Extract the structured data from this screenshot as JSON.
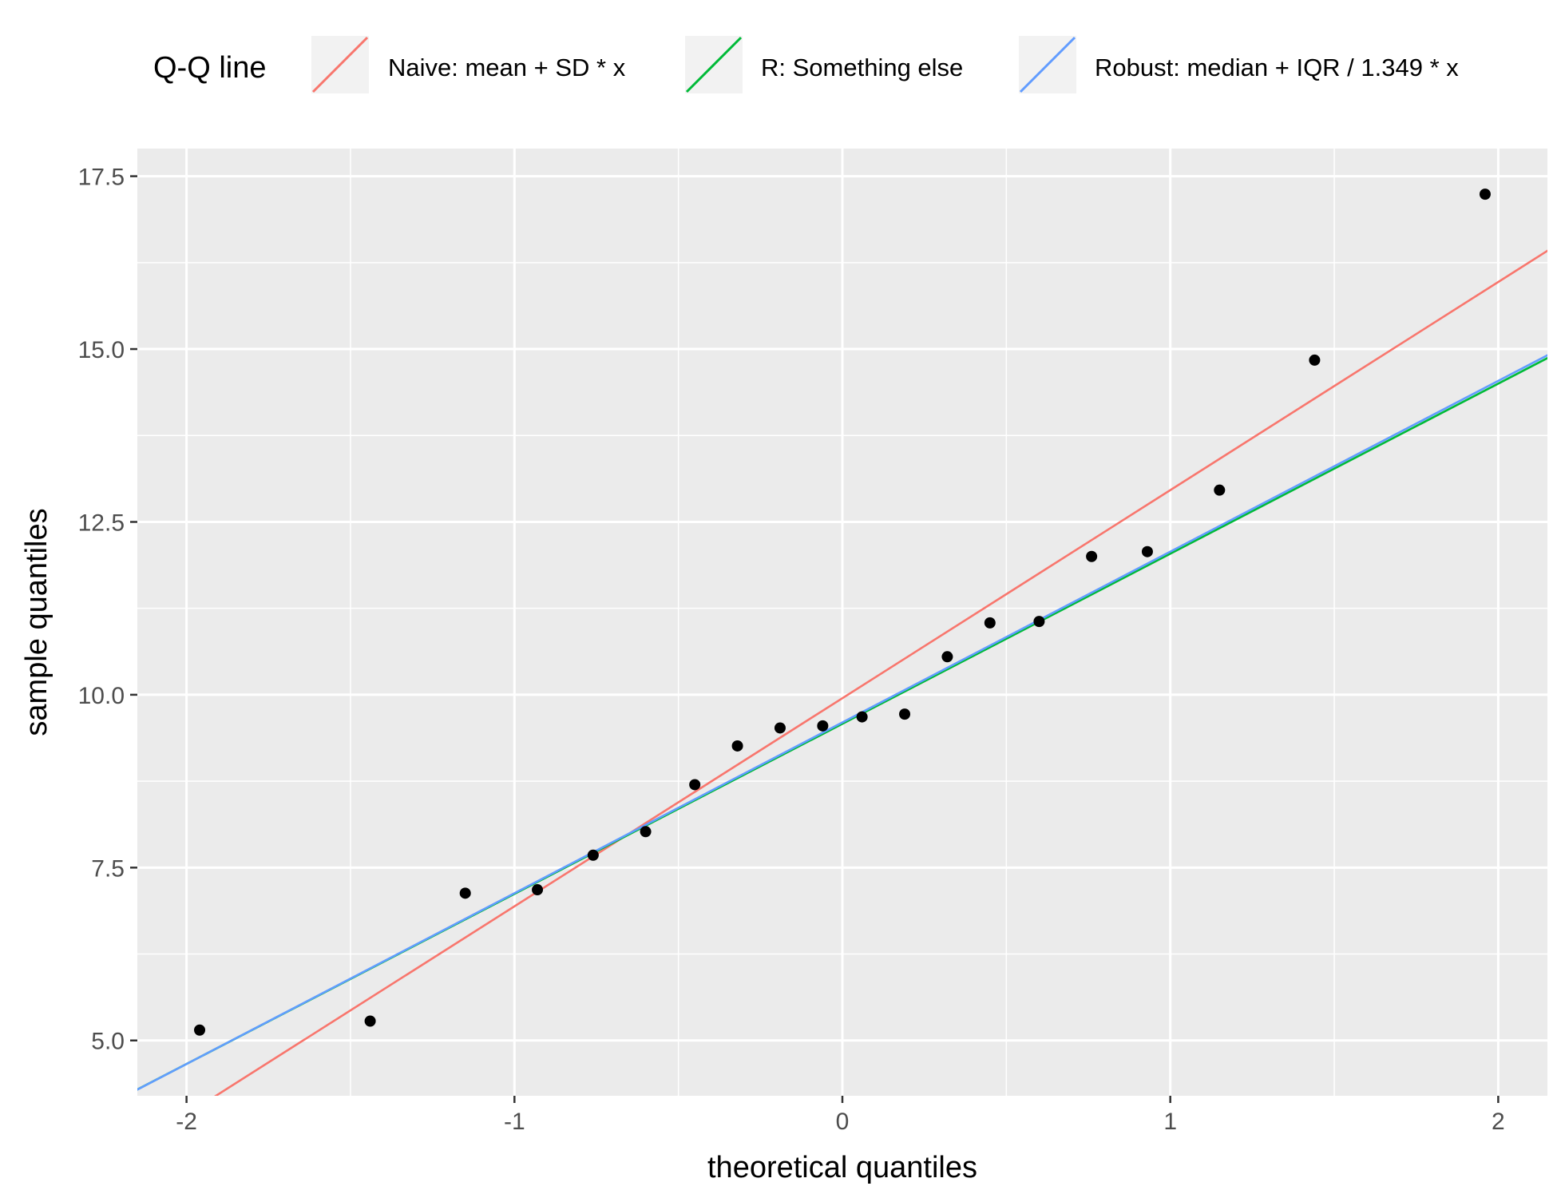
{
  "chart_data": {
    "type": "scatter",
    "title": "",
    "xlabel": "theoretical quantiles",
    "ylabel": "sample quantiles",
    "xlim": [
      -2.15,
      2.15
    ],
    "ylim": [
      4.2,
      17.9
    ],
    "x_ticks": [
      -2,
      -1,
      0,
      1,
      2
    ],
    "x_tick_labels": [
      "-2",
      "-1",
      "0",
      "1",
      "2"
    ],
    "y_ticks": [
      5.0,
      7.5,
      10.0,
      12.5,
      15.0,
      17.5
    ],
    "y_tick_labels": [
      "5.0",
      "7.5",
      "10.0",
      "12.5",
      "15.0",
      "17.5"
    ],
    "grid": true,
    "background": "#ebebeb",
    "points": {
      "color": "#000000",
      "x": [
        -1.96,
        -1.44,
        -1.15,
        -0.93,
        -0.76,
        -0.6,
        -0.45,
        -0.32,
        -0.19,
        -0.06,
        0.06,
        0.19,
        0.32,
        0.45,
        0.6,
        0.76,
        0.93,
        1.15,
        1.44,
        1.96
      ],
      "y": [
        5.15,
        5.28,
        7.13,
        7.18,
        7.68,
        8.02,
        8.7,
        9.26,
        9.52,
        9.55,
        9.68,
        9.72,
        10.55,
        11.04,
        11.06,
        12.0,
        12.07,
        12.96,
        14.84,
        17.24
      ]
    },
    "legend": {
      "title": "Q-Q line",
      "placement": "top"
    },
    "series": [
      {
        "name": "Naive: mean + SD * x",
        "type": "line",
        "color": "#f8766d",
        "intercept": 9.95,
        "slope": 3.01
      },
      {
        "name": "R: Something else",
        "type": "line",
        "color": "#00ba38",
        "intercept": 9.58,
        "slope": 2.46
      },
      {
        "name": "Robust: median + IQR / 1.349 * x",
        "type": "line",
        "color": "#619cff",
        "intercept": 9.6,
        "slope": 2.47
      }
    ]
  }
}
